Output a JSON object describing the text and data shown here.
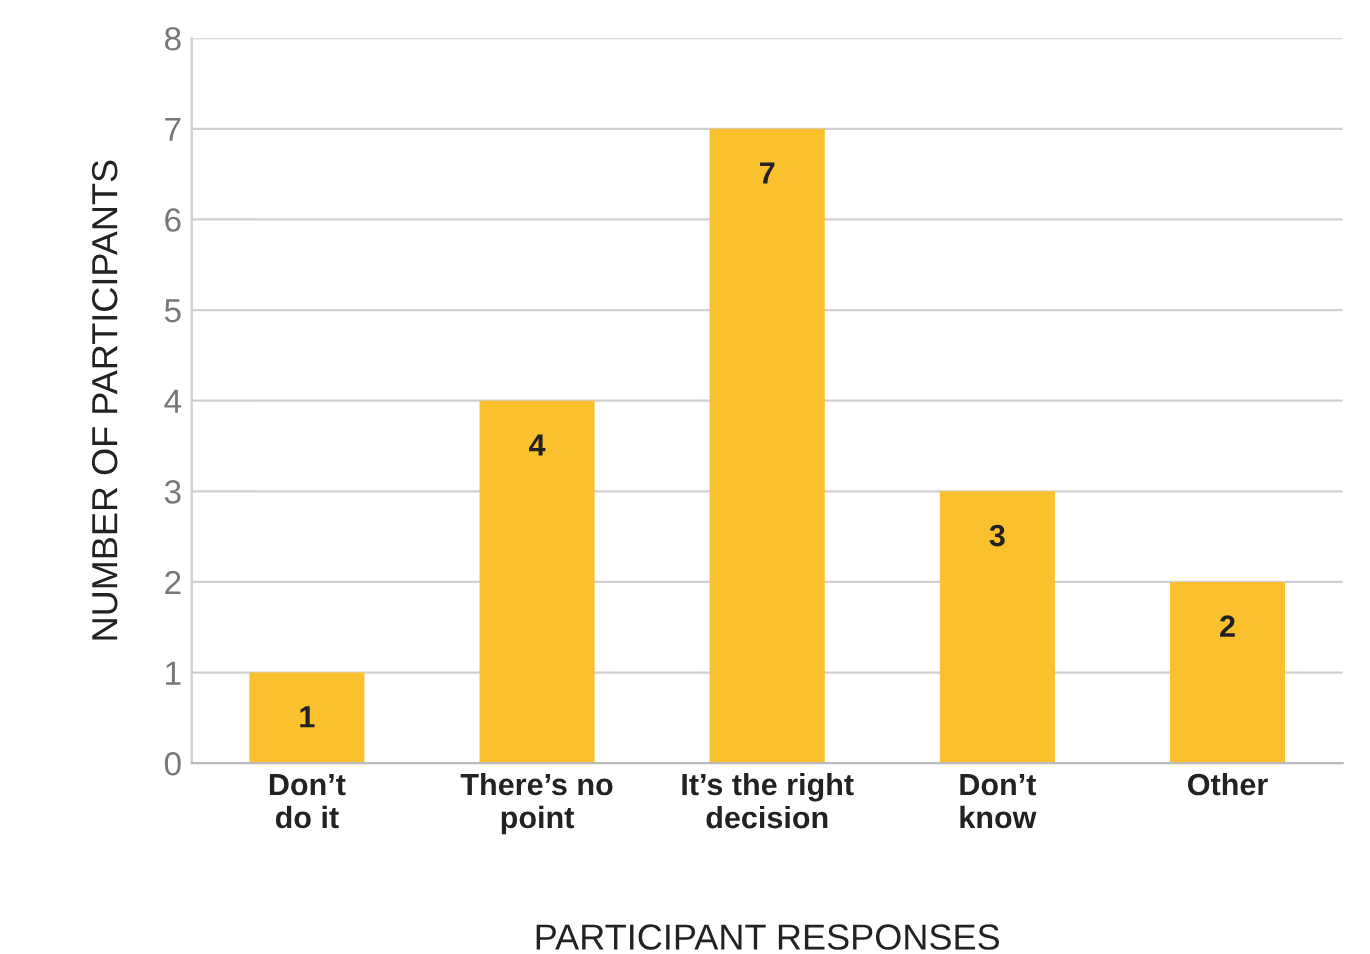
{
  "chart_data": {
    "type": "bar",
    "xlabel": "PARTICIPANT RESPONSES",
    "ylabel": "NUMBER OF PARTICIPANTS",
    "categories": [
      "Don’t\ndo it",
      "There’s no\npoint",
      "It’s the right\ndecision",
      "Don’t\nknow",
      "Other"
    ],
    "values": [
      1,
      4,
      7,
      3,
      2
    ],
    "color": "#fbc02d",
    "ylim": [
      0,
      8
    ],
    "yticks": [
      0,
      1,
      2,
      3,
      4,
      5,
      6,
      7,
      8
    ],
    "grid": "y",
    "data_labels": true,
    "legend": false
  }
}
